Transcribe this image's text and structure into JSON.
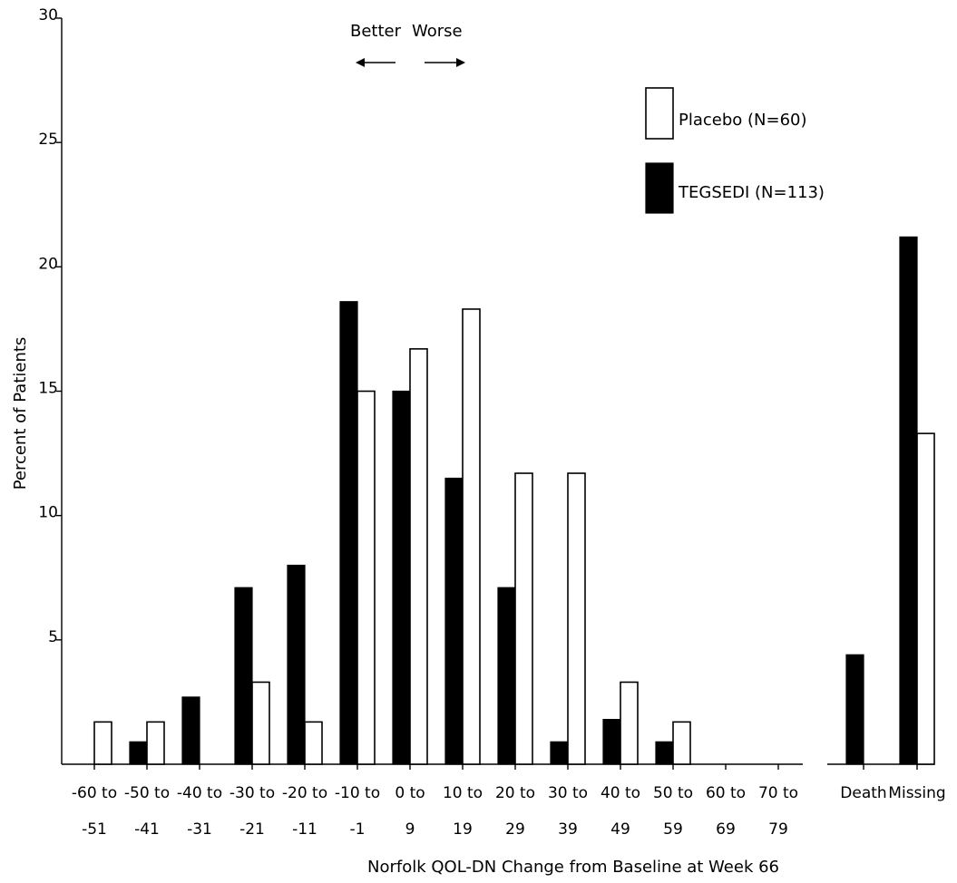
{
  "chart_data": {
    "type": "bar",
    "xlabel": "Norfolk QOL-DN Change from Baseline at Week 66",
    "ylabel": "Percent of Patients",
    "ylim": [
      0,
      30
    ],
    "yticks": [
      "5",
      "10",
      "15",
      "20",
      "25",
      "30"
    ],
    "legend_position": "top-right",
    "annotation": {
      "better": "Better",
      "worse": "Worse"
    },
    "groups": [
      {
        "categories": [
          [
            "-60 to",
            "-51"
          ],
          [
            "-50 to",
            "-41"
          ],
          [
            "-40 to",
            "-31"
          ],
          [
            "-30 to",
            "-21"
          ],
          [
            "-20 to",
            "-11"
          ],
          [
            "-10 to",
            "-1"
          ],
          [
            "0 to",
            "9"
          ],
          [
            "10 to",
            "19"
          ],
          [
            "20 to",
            "29"
          ],
          [
            "30 to",
            "39"
          ],
          [
            "40 to",
            "49"
          ],
          [
            "50 to",
            "59"
          ],
          [
            "60 to",
            "69"
          ],
          [
            "70 to",
            "79"
          ]
        ]
      },
      {
        "categories": [
          [
            "Death",
            ""
          ],
          [
            "Missing",
            ""
          ]
        ]
      }
    ],
    "series": [
      {
        "name": "TEGSEDI (N=113)",
        "color": "#000000",
        "values": [
          0,
          0.9,
          2.7,
          7.1,
          8.0,
          18.6,
          15.0,
          11.5,
          7.1,
          0.9,
          1.8,
          0.9,
          0,
          0,
          4.4,
          21.2
        ]
      },
      {
        "name": "Placebo (N=60)",
        "color": "#ffffff",
        "values": [
          1.7,
          1.7,
          0,
          3.3,
          1.7,
          15.0,
          16.7,
          18.3,
          11.7,
          11.7,
          3.3,
          1.7,
          0,
          0,
          0,
          13.3
        ]
      }
    ]
  }
}
